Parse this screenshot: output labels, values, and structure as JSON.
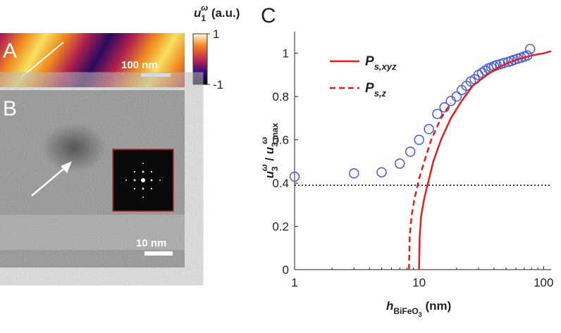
{
  "panel_a": {
    "label": "A",
    "scale_bar": "100 nm",
    "colorbar_label": {
      "base": "u",
      "sub": "1",
      "sup": "ω",
      "unit": " (a.u.)"
    },
    "colorbar_lim": [
      -1,
      1
    ],
    "colorbar_ticks": [
      1,
      -1
    ]
  },
  "panel_b": {
    "label": "B",
    "scale_bar": "10 nm"
  },
  "chart_data": {
    "type": "line",
    "panel_label": "C",
    "x_label": {
      "base": "h",
      "sub": "BiFeO",
      "subsub": "3",
      "unit": " (nm)"
    },
    "y_label": {
      "base": "u",
      "sub": "3",
      "sup": "ω",
      "sep": " / ",
      "base2": "u",
      "sub2": "3,max",
      "sup2": "ω"
    },
    "xscale": "log",
    "xlim": [
      1,
      115
    ],
    "xticks": [
      1,
      10,
      100
    ],
    "ylim": [
      0,
      1.1
    ],
    "yticks": [
      0,
      0.2,
      0.4,
      0.6,
      0.8,
      1
    ],
    "hline": 0.39,
    "legend": "upper left",
    "series": [
      {
        "marker": "circle",
        "color": "#4a5ad8",
        "x": [
          1,
          3,
          5,
          7,
          8.5,
          10,
          12,
          14,
          16,
          18,
          20,
          22,
          24,
          26,
          28,
          30,
          32,
          34,
          36,
          38,
          40,
          42,
          45,
          48,
          52,
          55,
          58,
          62,
          66,
          70,
          74,
          78
        ],
        "y": [
          0.43,
          0.445,
          0.45,
          0.49,
          0.545,
          0.6,
          0.65,
          0.72,
          0.75,
          0.78,
          0.8,
          0.83,
          0.85,
          0.87,
          0.88,
          0.9,
          0.91,
          0.92,
          0.93,
          0.935,
          0.94,
          0.945,
          0.95,
          0.955,
          0.96,
          0.965,
          0.97,
          0.975,
          0.98,
          0.985,
          0.99,
          1.02
        ]
      },
      {
        "name": "P",
        "name_sub": "s,xyz",
        "line_style": "solid",
        "color": "#e02020",
        "x": [
          10,
          10.1,
          10.4,
          11,
          11.8,
          13,
          15,
          18,
          22,
          27,
          35,
          45,
          60,
          80,
          100,
          115
        ],
        "y": [
          0,
          0.15,
          0.25,
          0.33,
          0.4,
          0.5,
          0.6,
          0.7,
          0.78,
          0.85,
          0.9,
          0.94,
          0.97,
          0.99,
          1.0,
          1.01
        ]
      },
      {
        "name": "P",
        "name_sub": "s,z",
        "line_style": "dashed",
        "color": "#e02020",
        "x": [
          8.3,
          8.4,
          8.7,
          9.2,
          10,
          11,
          12.5,
          15,
          18
        ],
        "y": [
          0,
          0.15,
          0.25,
          0.33,
          0.42,
          0.5,
          0.6,
          0.7,
          0.77
        ]
      }
    ]
  }
}
